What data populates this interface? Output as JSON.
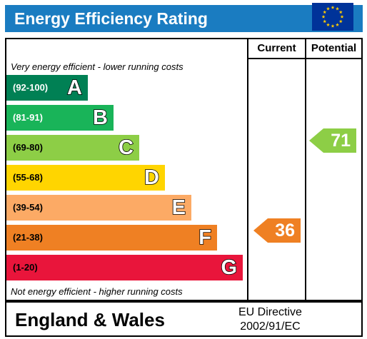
{
  "title": "Energy Efficiency Rating",
  "columns": {
    "current": "Current",
    "potential": "Potential"
  },
  "top_note": "Very energy efficient - lower running costs",
  "bottom_note": "Not energy efficient - higher running costs",
  "bands": [
    {
      "range": "(92-100)",
      "letter": "A",
      "color": "#008054",
      "range_color": "#ffffff"
    },
    {
      "range": "(81-91)",
      "letter": "B",
      "color": "#19b459",
      "range_color": "#ffffff"
    },
    {
      "range": "(69-80)",
      "letter": "C",
      "color": "#8dce46",
      "range_color": "#000000"
    },
    {
      "range": "(55-68)",
      "letter": "D",
      "color": "#ffd500",
      "range_color": "#000000"
    },
    {
      "range": "(39-54)",
      "letter": "E",
      "color": "#fcaa65",
      "range_color": "#000000"
    },
    {
      "range": "(21-38)",
      "letter": "F",
      "color": "#ef8023",
      "range_color": "#000000"
    },
    {
      "range": "(1-20)",
      "letter": "G",
      "color": "#e9153b",
      "range_color": "#000000"
    }
  ],
  "current": {
    "value": "36",
    "band": "F",
    "color": "#ef8023"
  },
  "potential": {
    "value": "71",
    "band": "C",
    "color": "#8dce46"
  },
  "footer": {
    "region": "England & Wales",
    "directive_line1": "EU Directive",
    "directive_line2": "2002/91/EC",
    "flag_icon": "eu-flag-icon"
  }
}
